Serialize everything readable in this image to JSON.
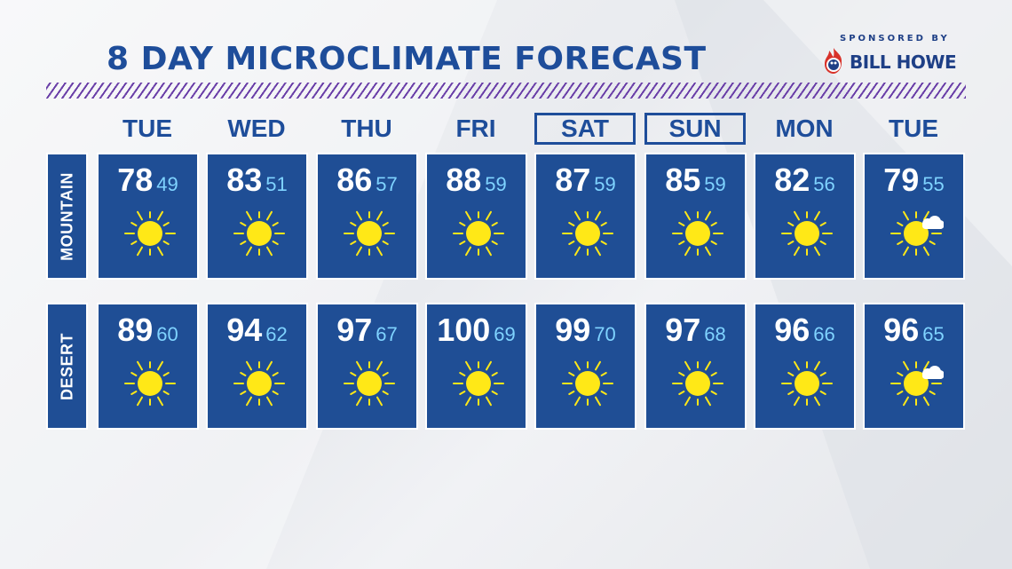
{
  "title": "8 DAY MICROCLIMATE FORECAST",
  "sponsor": {
    "label": "SPONSORED BY",
    "name": "BILL HOWE"
  },
  "days": [
    {
      "label": "TUE",
      "weekend": false
    },
    {
      "label": "WED",
      "weekend": false
    },
    {
      "label": "THU",
      "weekend": false
    },
    {
      "label": "FRI",
      "weekend": false
    },
    {
      "label": "SAT",
      "weekend": true
    },
    {
      "label": "SUN",
      "weekend": true
    },
    {
      "label": "MON",
      "weekend": false
    },
    {
      "label": "TUE",
      "weekend": false
    }
  ],
  "rows": [
    {
      "label": "MOUNTAIN",
      "forecast": [
        {
          "hi": "78",
          "lo": "49",
          "icon": "sun-icon"
        },
        {
          "hi": "83",
          "lo": "51",
          "icon": "sun-icon"
        },
        {
          "hi": "86",
          "lo": "57",
          "icon": "sun-icon"
        },
        {
          "hi": "88",
          "lo": "59",
          "icon": "sun-icon"
        },
        {
          "hi": "87",
          "lo": "59",
          "icon": "sun-icon"
        },
        {
          "hi": "85",
          "lo": "59",
          "icon": "sun-icon"
        },
        {
          "hi": "82",
          "lo": "56",
          "icon": "sun-icon"
        },
        {
          "hi": "79",
          "lo": "55",
          "icon": "partly-sunny-icon"
        }
      ]
    },
    {
      "label": "DESERT",
      "forecast": [
        {
          "hi": "89",
          "lo": "60",
          "icon": "sun-icon"
        },
        {
          "hi": "94",
          "lo": "62",
          "icon": "sun-icon"
        },
        {
          "hi": "97",
          "lo": "67",
          "icon": "sun-icon"
        },
        {
          "hi": "100",
          "lo": "69",
          "icon": "sun-icon"
        },
        {
          "hi": "99",
          "lo": "70",
          "icon": "sun-icon"
        },
        {
          "hi": "97",
          "lo": "68",
          "icon": "sun-icon"
        },
        {
          "hi": "96",
          "lo": "66",
          "icon": "sun-icon"
        },
        {
          "hi": "96",
          "lo": "65",
          "icon": "partly-sunny-icon"
        }
      ]
    }
  ],
  "colors": {
    "accent": "#1e4d9a",
    "panel": "#1f4e95",
    "low_temp": "#7fd3ff",
    "sun": "#ffe817",
    "hatch": "#6a3fa8"
  }
}
